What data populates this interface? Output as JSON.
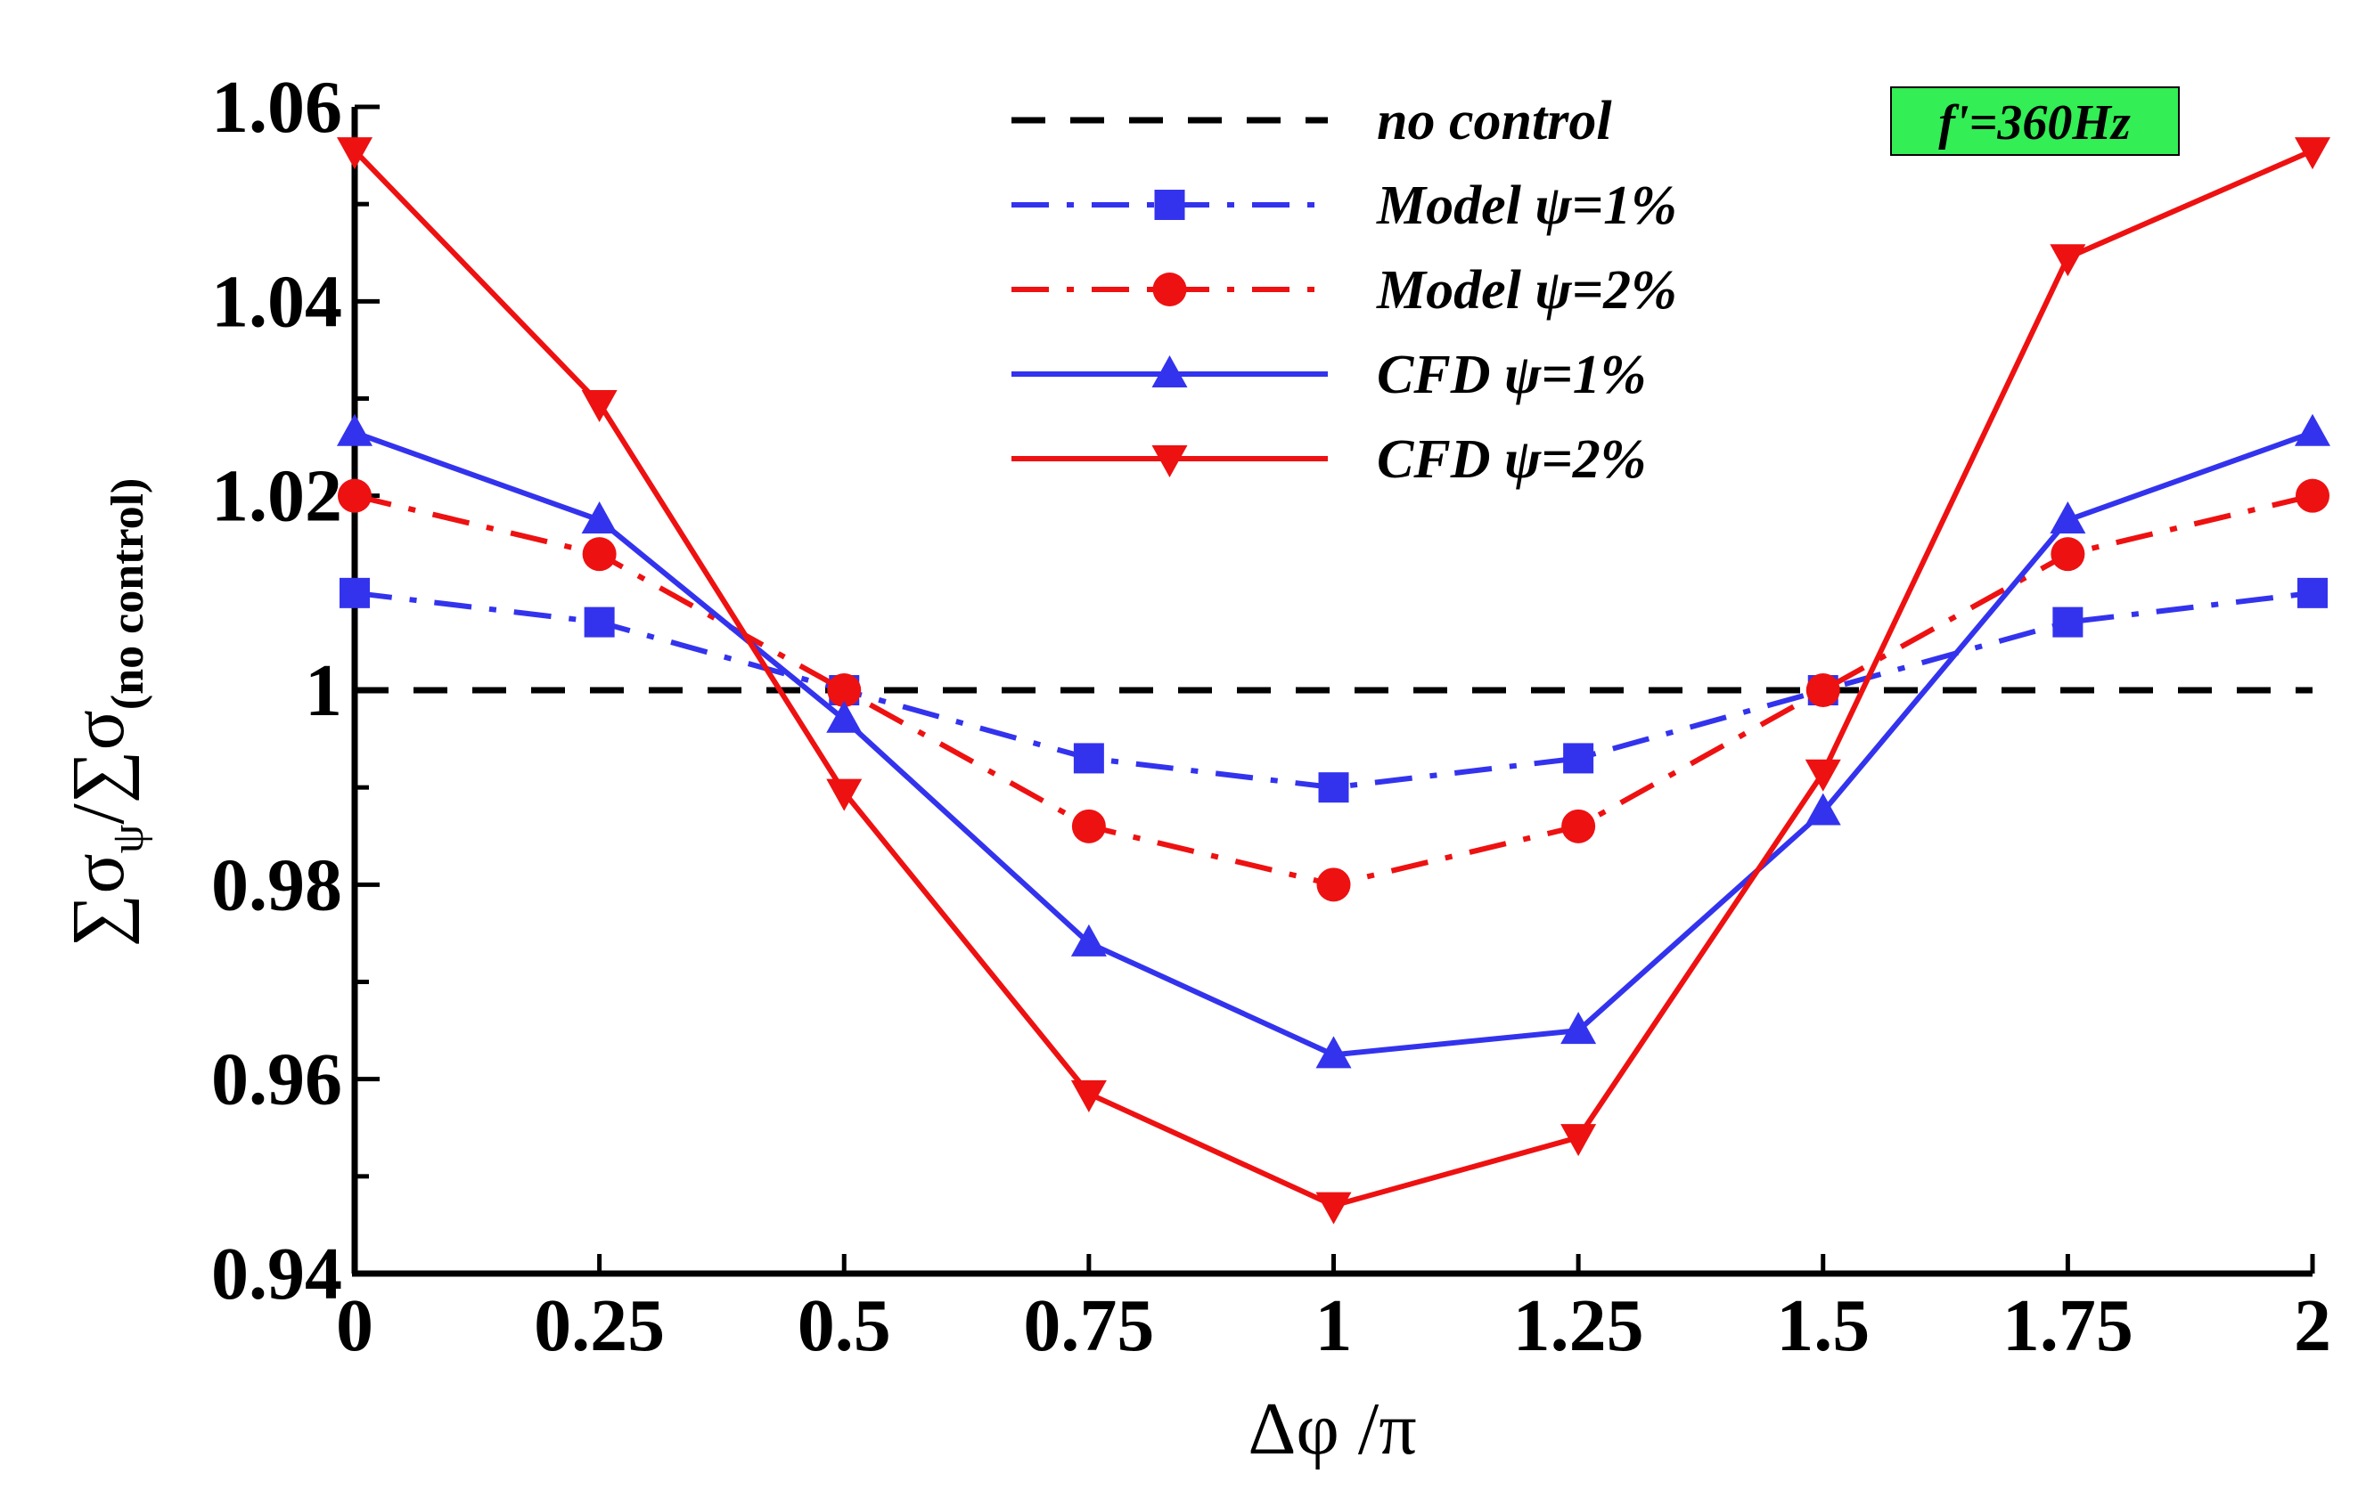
{
  "chart_data": {
    "type": "line",
    "title": "",
    "xlabel": "Δφ /π",
    "ylabel": "∑σψ/∑σ(no control)",
    "ylabel_parts": {
      "sigma1": "∑σ",
      "sub1": "ψ",
      "slash": "/",
      "sigma2": "∑σ",
      "sub2": "(no control)"
    },
    "xlim": [
      0,
      2
    ],
    "ylim": [
      0.94,
      1.06
    ],
    "xticks": [
      0,
      0.25,
      0.5,
      0.75,
      1,
      1.25,
      1.5,
      1.75,
      2
    ],
    "xtick_labels": [
      "0",
      "0.25",
      "0.5",
      "0.75",
      "1",
      "1.25",
      "1.5",
      "1.75",
      "2"
    ],
    "yticks": [
      0.94,
      0.96,
      0.98,
      1.0,
      1.02,
      1.04,
      1.06
    ],
    "ytick_labels": [
      "0.94",
      "0.96",
      "0.98",
      "1",
      "1.02",
      "1.04",
      "1.06"
    ],
    "y_minor_step": 0.01,
    "annotation": "f'=360Hz",
    "annotation_bg": "#33ee55",
    "legend_position": "top-right",
    "x": [
      0,
      0.25,
      0.5,
      0.75,
      1,
      1.25,
      1.5,
      1.75,
      2
    ],
    "series": [
      {
        "name": "no control",
        "legend_label": "no control",
        "values": [
          1,
          1,
          1,
          1,
          1,
          1,
          1,
          1,
          1
        ],
        "color": "#000000",
        "dash": "dash",
        "marker": "none"
      },
      {
        "name": "Model ψ=1%",
        "legend_label": "Model  ψ=1%",
        "values": [
          1.01,
          1.007,
          1.0,
          0.993,
          0.99,
          0.993,
          1.0,
          1.007,
          1.01
        ],
        "color": "#3333ee",
        "dash": "dashdot",
        "marker": "square"
      },
      {
        "name": "Model ψ=2%",
        "legend_label": "Model  ψ=2%",
        "values": [
          1.02,
          1.014,
          1.0,
          0.986,
          0.98,
          0.986,
          1.0,
          1.014,
          1.02
        ],
        "color": "#ee1111",
        "dash": "dashdot",
        "marker": "circle"
      },
      {
        "name": "CFD ψ=1%",
        "legend_label": "CFD  ψ=1%",
        "values": [
          1.0265,
          1.0175,
          0.997,
          0.974,
          0.9625,
          0.965,
          0.9875,
          1.0175,
          1.0265
        ],
        "color": "#3333ee",
        "dash": "solid",
        "marker": "triangle-up"
      },
      {
        "name": "CFD ψ=2%",
        "legend_label": "CFD  ψ=2%",
        "values": [
          1.0555,
          1.0295,
          0.9895,
          0.9585,
          0.947,
          0.954,
          0.9915,
          1.0445,
          1.0555
        ],
        "color": "#ee1111",
        "dash": "solid",
        "marker": "triangle-down"
      }
    ]
  }
}
